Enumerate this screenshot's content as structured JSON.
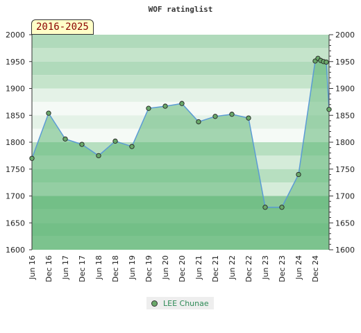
{
  "chart_data": {
    "type": "area",
    "title": "WOF ratinglist",
    "badge": "2016-2025",
    "x_tick_labels": [
      "Jun 16",
      "Dec 16",
      "Jun 17",
      "Dec 17",
      "Jun 18",
      "Dec 18",
      "Jun 19",
      "Dec 19",
      "Jun 20",
      "Dec 20",
      "Jun 21",
      "Dec 21",
      "Jun 22",
      "Dec 22",
      "Jun 23",
      "Dec 23",
      "Jun 24",
      "Dec 24"
    ],
    "y_ticks": [
      1600,
      1650,
      1700,
      1750,
      1800,
      1850,
      1900,
      1950,
      2000
    ],
    "ylim": [
      1600,
      2000
    ],
    "grid": true,
    "legend_position": "bottom-center",
    "series": [
      {
        "name": "LEE Chunae",
        "color": "#5b9bd5",
        "marker_color": "#6aa86a",
        "points": [
          {
            "x": "Jun 16",
            "y": 1770
          },
          {
            "x": "Dec 16",
            "y": 1854
          },
          {
            "x": "Jun 17",
            "y": 1806
          },
          {
            "x": "Dec 17",
            "y": 1796
          },
          {
            "x": "Jun 18",
            "y": 1775
          },
          {
            "x": "Dec 18",
            "y": 1802
          },
          {
            "x": "Jun 19",
            "y": 1792
          },
          {
            "x": "Dec 19",
            "y": 1863
          },
          {
            "x": "Jun 20",
            "y": 1867
          },
          {
            "x": "Dec 20",
            "y": 1872
          },
          {
            "x": "Jun 21",
            "y": 1838
          },
          {
            "x": "Dec 21",
            "y": 1848
          },
          {
            "x": "Jun 22",
            "y": 1852
          },
          {
            "x": "Dec 22",
            "y": 1845
          },
          {
            "x": "Jun 23",
            "y": 1679
          },
          {
            "x": "Dec 23",
            "y": 1679
          },
          {
            "x": "Jun 24",
            "y": 1740
          },
          {
            "x": "Dec 24",
            "y": 1951
          },
          {
            "x": "Jan 25",
            "y": 1956
          },
          {
            "x": "Feb 25",
            "y": 1952
          },
          {
            "x": "Mar 25",
            "y": 1950
          },
          {
            "x": "Apr 25",
            "y": 1949
          },
          {
            "x": "May 25",
            "y": 1861
          }
        ]
      }
    ]
  }
}
